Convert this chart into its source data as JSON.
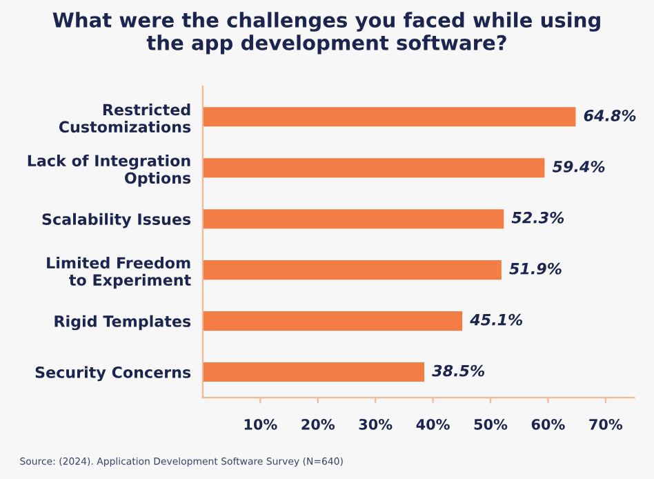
{
  "chart_data": {
    "type": "bar",
    "orientation": "horizontal",
    "title": "What were the challenges you faced while using\nthe app development software?",
    "categories": [
      "Restricted\nCustomizations",
      "Lack of Integration\nOptions",
      "Scalability Issues",
      "Limited Freedom\nto Experiment",
      "Rigid Templates",
      "Security Concerns"
    ],
    "values": [
      64.8,
      59.4,
      52.3,
      51.9,
      45.1,
      38.5
    ],
    "value_labels": [
      "64.8%",
      "59.4%",
      "52.3%",
      "51.9%",
      "45.1%",
      "38.5%"
    ],
    "color": "#f47c45",
    "xlim": [
      0,
      75
    ],
    "xticks": [
      {
        "value": 10,
        "label": "10%"
      },
      {
        "value": 20,
        "label": "20%"
      },
      {
        "value": 30,
        "label": "30%"
      },
      {
        "value": 40,
        "label": "40%"
      },
      {
        "value": 50,
        "label": "50%"
      },
      {
        "value": 60,
        "label": "60%"
      },
      {
        "value": 70,
        "label": "70%"
      }
    ],
    "grid": false,
    "legend": false,
    "annotations": [
      "Source: (2024). Application Development Software Survey (N=640)"
    ]
  }
}
